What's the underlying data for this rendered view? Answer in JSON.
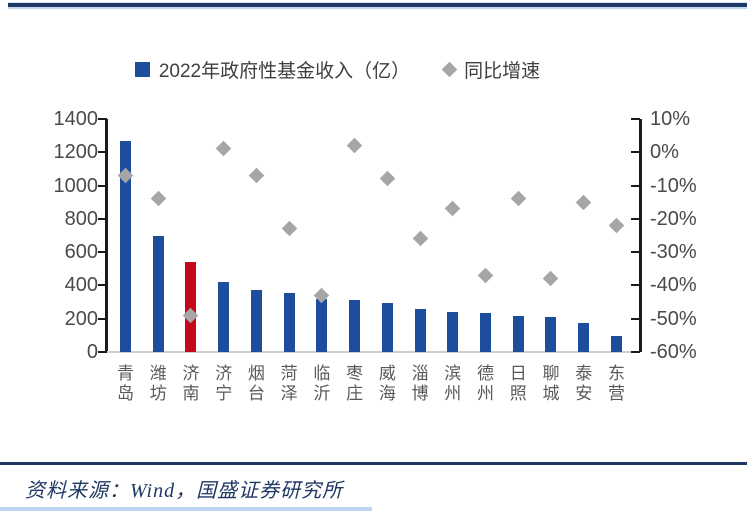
{
  "footer": {
    "source_note": "资料来源：Wind，国盛证券研究所"
  },
  "colors": {
    "bar_blue": "#1d4e9e",
    "bar_highlight_red": "#c5081a",
    "marker_gray": "#a6a6a6",
    "rule_navy": "#1f3864",
    "accent_lightblue": "#aecbeb"
  },
  "chart_data": {
    "type": "bar",
    "subtype": "combo-bar-scatter",
    "title": "",
    "categories": [
      "青岛",
      "潍坊",
      "济南",
      "济宁",
      "烟台",
      "菏泽",
      "临沂",
      "枣庄",
      "威海",
      "淄博",
      "滨州",
      "德州",
      "日照",
      "聊城",
      "泰安",
      "东营"
    ],
    "series": [
      {
        "name": "2022年政府性基金收入（亿）",
        "type": "bar",
        "axis": "left",
        "color": "#1d4e9e",
        "highlight_index": 2,
        "highlight_color": "#c5081a",
        "values": [
          1265,
          700,
          540,
          420,
          375,
          355,
          320,
          315,
          295,
          260,
          240,
          235,
          215,
          210,
          175,
          95
        ]
      },
      {
        "name": "同比增速",
        "type": "scatter",
        "marker": "diamond",
        "axis": "right",
        "color": "#a6a6a6",
        "unit": "%",
        "values": [
          -7,
          -14,
          -49,
          1,
          -7,
          -23,
          -43,
          2,
          -8,
          -26,
          -17,
          -37,
          -14,
          -38,
          -15,
          -22
        ]
      }
    ],
    "left_axis": {
      "min": 0,
      "max": 1400,
      "tick_labels": [
        "0",
        "200",
        "400",
        "600",
        "800",
        "1000",
        "1200",
        "1400"
      ]
    },
    "right_axis": {
      "min": -60,
      "max": 10,
      "tick_labels": [
        "10%",
        "0%",
        "-10%",
        "-20%",
        "-30%",
        "-40%",
        "-50%",
        "-60%"
      ]
    },
    "legend_position": "top",
    "grid": false
  }
}
